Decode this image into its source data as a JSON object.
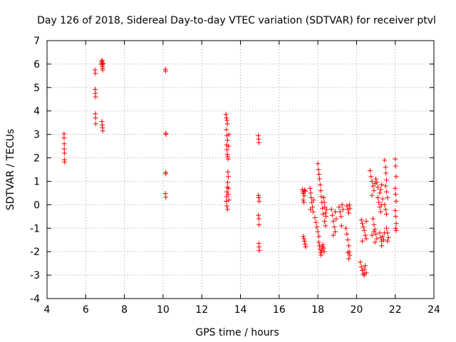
{
  "chart_data": {
    "type": "scatter",
    "title": "Day 126 of 2018, Sidereal Day-to-day VTEC variation (SDTVAR) for receiver ptvl",
    "xlabel": "GPS time / hours",
    "ylabel": "SDTVAR / TECUs",
    "xlim": [
      4,
      24
    ],
    "ylim": [
      -4,
      7
    ],
    "xticks": [
      "4",
      "6",
      "8",
      "10",
      "12",
      "14",
      "16",
      "18",
      "20",
      "22",
      "24"
    ],
    "yticks": [
      "-4",
      "-3",
      "-2",
      "-1",
      "0",
      "1",
      "2",
      "3",
      "4",
      "5",
      "6",
      "7"
    ],
    "grid": true,
    "marker": "plus",
    "marker_color": "#ff0000",
    "series": [
      {
        "name": "SDTVAR",
        "points": [
          [
            4.88,
            3.02
          ],
          [
            4.88,
            2.85
          ],
          [
            4.89,
            2.6
          ],
          [
            4.89,
            2.38
          ],
          [
            4.9,
            2.2
          ],
          [
            4.9,
            1.92
          ],
          [
            4.91,
            1.82
          ],
          [
            6.48,
            5.75
          ],
          [
            6.5,
            5.6
          ],
          [
            6.49,
            4.92
          ],
          [
            6.5,
            4.75
          ],
          [
            6.51,
            4.6
          ],
          [
            6.5,
            3.88
          ],
          [
            6.51,
            3.7
          ],
          [
            6.52,
            3.45
          ],
          [
            6.82,
            6.12
          ],
          [
            6.84,
            6.05
          ],
          [
            6.85,
            5.98
          ],
          [
            6.86,
            5.9
          ],
          [
            6.87,
            5.82
          ],
          [
            6.88,
            5.75
          ],
          [
            6.83,
            6.0
          ],
          [
            6.86,
            6.15
          ],
          [
            6.9,
            6.02
          ],
          [
            6.84,
            3.55
          ],
          [
            6.86,
            3.4
          ],
          [
            6.87,
            3.28
          ],
          [
            6.88,
            3.15
          ],
          [
            10.12,
            5.78
          ],
          [
            10.13,
            5.7
          ],
          [
            10.14,
            3.05
          ],
          [
            10.15,
            3.0
          ],
          [
            10.13,
            1.38
          ],
          [
            10.14,
            1.32
          ],
          [
            10.12,
            0.48
          ],
          [
            10.14,
            0.32
          ],
          [
            13.25,
            3.85
          ],
          [
            13.28,
            3.7
          ],
          [
            13.3,
            3.6
          ],
          [
            13.32,
            3.45
          ],
          [
            13.27,
            3.2
          ],
          [
            13.3,
            2.95
          ],
          [
            13.33,
            2.75
          ],
          [
            13.28,
            2.55
          ],
          [
            13.3,
            2.35
          ],
          [
            13.32,
            2.15
          ],
          [
            13.34,
            2.05
          ],
          [
            13.36,
            1.95
          ],
          [
            13.38,
            2.5
          ],
          [
            13.4,
            3.0
          ],
          [
            13.35,
            1.4
          ],
          [
            13.37,
            1.2
          ],
          [
            13.34,
            0.95
          ],
          [
            13.32,
            0.75
          ],
          [
            13.3,
            0.55
          ],
          [
            13.28,
            0.35
          ],
          [
            13.27,
            0.15
          ],
          [
            13.3,
            -0.05
          ],
          [
            13.33,
            -0.2
          ],
          [
            13.36,
            0.45
          ],
          [
            13.38,
            0.7
          ],
          [
            13.4,
            0.2
          ],
          [
            14.92,
            2.95
          ],
          [
            14.94,
            2.8
          ],
          [
            14.95,
            2.65
          ],
          [
            14.93,
            0.4
          ],
          [
            14.95,
            0.3
          ],
          [
            14.97,
            0.15
          ],
          [
            14.93,
            -0.45
          ],
          [
            14.95,
            -0.6
          ],
          [
            14.96,
            -0.85
          ],
          [
            14.95,
            -1.65
          ],
          [
            14.96,
            -1.8
          ],
          [
            14.97,
            -1.95
          ],
          [
            17.2,
            0.65
          ],
          [
            17.23,
            0.55
          ],
          [
            17.26,
            0.48
          ],
          [
            17.29,
            0.38
          ],
          [
            17.32,
            0.62
          ],
          [
            17.35,
            0.58
          ],
          [
            17.25,
            0.2
          ],
          [
            17.28,
            0.1
          ],
          [
            17.25,
            -1.35
          ],
          [
            17.28,
            -1.45
          ],
          [
            17.31,
            -1.55
          ],
          [
            17.34,
            -1.68
          ],
          [
            17.37,
            -1.8
          ],
          [
            17.6,
            0.7
          ],
          [
            17.63,
            0.5
          ],
          [
            17.66,
            0.3
          ],
          [
            17.69,
            0.1
          ],
          [
            17.72,
            -0.1
          ],
          [
            17.75,
            -0.3
          ],
          [
            17.78,
            0.2
          ],
          [
            17.62,
            -0.2
          ],
          [
            17.85,
            -0.55
          ],
          [
            17.9,
            -0.75
          ],
          [
            17.95,
            -0.95
          ],
          [
            18.0,
            -1.15
          ],
          [
            18.05,
            -1.35
          ],
          [
            18.0,
            1.75
          ],
          [
            18.03,
            1.5
          ],
          [
            18.06,
            1.3
          ],
          [
            18.09,
            1.1
          ],
          [
            18.12,
            0.85
          ],
          [
            18.15,
            0.6
          ],
          [
            18.18,
            0.35
          ],
          [
            18.21,
            0.1
          ],
          [
            18.24,
            -0.15
          ],
          [
            18.27,
            -0.4
          ],
          [
            18.05,
            -1.6
          ],
          [
            18.08,
            -1.75
          ],
          [
            18.11,
            -1.9
          ],
          [
            18.14,
            -2.05
          ],
          [
            18.17,
            -2.15
          ],
          [
            18.2,
            -1.95
          ],
          [
            18.23,
            -1.8
          ],
          [
            18.26,
            -1.7
          ],
          [
            18.3,
            -1.85
          ],
          [
            18.33,
            -2.0
          ],
          [
            18.3,
            0.3
          ],
          [
            18.33,
            0.1
          ],
          [
            18.36,
            -0.1
          ],
          [
            18.39,
            -0.35
          ],
          [
            18.42,
            -0.5
          ],
          [
            18.45,
            -0.2
          ],
          [
            18.35,
            -0.7
          ],
          [
            18.4,
            -0.9
          ],
          [
            18.7,
            -0.2
          ],
          [
            18.75,
            -0.45
          ],
          [
            18.8,
            -0.7
          ],
          [
            18.85,
            -0.95
          ],
          [
            18.9,
            -1.15
          ],
          [
            18.95,
            -0.6
          ],
          [
            18.8,
            -1.3
          ],
          [
            18.9,
            -0.3
          ],
          [
            19.1,
            -0.1
          ],
          [
            19.15,
            -0.3
          ],
          [
            19.2,
            -0.5
          ],
          [
            19.25,
            0.0
          ],
          [
            19.3,
            -0.2
          ],
          [
            19.22,
            -0.9
          ],
          [
            19.45,
            -1.0
          ],
          [
            19.5,
            -1.25
          ],
          [
            19.55,
            -1.5
          ],
          [
            19.6,
            -1.75
          ],
          [
            19.62,
            -2.0
          ],
          [
            19.65,
            -2.15
          ],
          [
            19.6,
            -2.3
          ],
          [
            19.55,
            -2.05
          ],
          [
            19.5,
            -0.05
          ],
          [
            19.55,
            -0.2
          ],
          [
            19.6,
            -0.35
          ],
          [
            19.63,
            0.0
          ],
          [
            19.66,
            -0.15
          ],
          [
            20.2,
            -2.45
          ],
          [
            20.25,
            -2.65
          ],
          [
            20.3,
            -2.8
          ],
          [
            20.35,
            -2.95
          ],
          [
            20.4,
            -2.75
          ],
          [
            20.45,
            -2.6
          ],
          [
            20.5,
            -2.9
          ],
          [
            20.4,
            -3.0
          ],
          [
            20.25,
            -0.65
          ],
          [
            20.3,
            -0.8
          ],
          [
            20.35,
            -0.95
          ],
          [
            20.4,
            -1.1
          ],
          [
            20.45,
            -1.3
          ],
          [
            20.5,
            -1.45
          ],
          [
            20.3,
            -1.55
          ],
          [
            20.5,
            -0.7
          ],
          [
            20.7,
            1.45
          ],
          [
            20.75,
            1.2
          ],
          [
            20.8,
            1.0
          ],
          [
            20.85,
            0.8
          ],
          [
            20.9,
            0.6
          ],
          [
            20.95,
            0.9
          ],
          [
            21.0,
            1.1
          ],
          [
            21.05,
            0.95
          ],
          [
            21.1,
            0.75
          ],
          [
            20.8,
            0.4
          ],
          [
            20.85,
            -0.6
          ],
          [
            20.9,
            -0.85
          ],
          [
            20.95,
            -1.05
          ],
          [
            21.0,
            -1.25
          ],
          [
            21.05,
            -1.45
          ],
          [
            20.95,
            -1.6
          ],
          [
            20.8,
            -1.3
          ],
          [
            20.9,
            -1.15
          ],
          [
            21.1,
            0.3
          ],
          [
            21.15,
            0.1
          ],
          [
            21.2,
            -0.1
          ],
          [
            21.25,
            -0.3
          ],
          [
            21.3,
            0.0
          ],
          [
            21.35,
            0.25
          ],
          [
            21.2,
            0.5
          ],
          [
            21.25,
            0.65
          ],
          [
            21.3,
            0.85
          ],
          [
            21.2,
            -1.2
          ],
          [
            21.25,
            -1.4
          ],
          [
            21.3,
            -1.55
          ],
          [
            21.35,
            -1.35
          ],
          [
            21.4,
            -1.5
          ],
          [
            21.45,
            -1.2
          ],
          [
            21.3,
            -1.75
          ],
          [
            21.45,
            1.9
          ],
          [
            21.5,
            1.6
          ],
          [
            21.52,
            1.35
          ],
          [
            21.55,
            1.05
          ],
          [
            21.5,
            0.8
          ],
          [
            21.55,
            0.55
          ],
          [
            21.6,
            0.3
          ],
          [
            21.45,
            0.0
          ],
          [
            21.5,
            -0.2
          ],
          [
            21.55,
            -0.4
          ],
          [
            21.55,
            -1.0
          ],
          [
            21.6,
            -1.2
          ],
          [
            21.65,
            -1.4
          ],
          [
            21.6,
            -1.55
          ],
          [
            22.0,
            1.95
          ],
          [
            22.02,
            1.65
          ],
          [
            22.05,
            1.2
          ],
          [
            22.0,
            0.7
          ],
          [
            22.02,
            0.45
          ],
          [
            22.05,
            0.15
          ],
          [
            22.0,
            -0.25
          ],
          [
            22.02,
            -0.5
          ],
          [
            22.05,
            -0.8
          ],
          [
            22.02,
            -1.0
          ],
          [
            22.05,
            -1.1
          ]
        ]
      }
    ]
  }
}
